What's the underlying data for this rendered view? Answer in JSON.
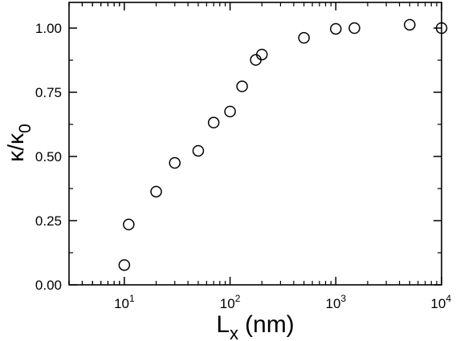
{
  "chart_data": {
    "type": "scatter",
    "xscale": "log",
    "xlim": [
      3,
      10000
    ],
    "ylim": [
      0,
      1.1
    ],
    "xlabel_main": "L",
    "xlabel_sub": "x",
    "xlabel_unit": "(nm)",
    "ylabel_main": "κ/κ",
    "ylabel_sub": "0",
    "xticks": [
      {
        "value": 10,
        "base": "10",
        "exp": "1"
      },
      {
        "value": 100,
        "base": "10",
        "exp": "2"
      },
      {
        "value": 1000,
        "base": "10",
        "exp": "3"
      },
      {
        "value": 10000,
        "base": "10",
        "exp": "4"
      }
    ],
    "yticks": [
      {
        "value": 0.0,
        "label": "0.00"
      },
      {
        "value": 0.25,
        "label": "0.25"
      },
      {
        "value": 0.5,
        "label": "0.50"
      },
      {
        "value": 0.75,
        "label": "0.75"
      },
      {
        "value": 1.0,
        "label": "1.00"
      }
    ],
    "grid": false,
    "marker": "open-circle",
    "points": [
      {
        "x": 10,
        "y": 0.077
      },
      {
        "x": 11,
        "y": 0.235
      },
      {
        "x": 20,
        "y": 0.363
      },
      {
        "x": 30,
        "y": 0.475
      },
      {
        "x": 50,
        "y": 0.522
      },
      {
        "x": 70,
        "y": 0.632
      },
      {
        "x": 100,
        "y": 0.675
      },
      {
        "x": 130,
        "y": 0.773
      },
      {
        "x": 175,
        "y": 0.876
      },
      {
        "x": 200,
        "y": 0.897
      },
      {
        "x": 500,
        "y": 0.962
      },
      {
        "x": 1000,
        "y": 0.997
      },
      {
        "x": 1500,
        "y": 1.0
      },
      {
        "x": 5000,
        "y": 1.013
      },
      {
        "x": 10000,
        "y": 1.0
      }
    ],
    "colors": {
      "ink": "#000000",
      "background": "#ffffff"
    }
  }
}
